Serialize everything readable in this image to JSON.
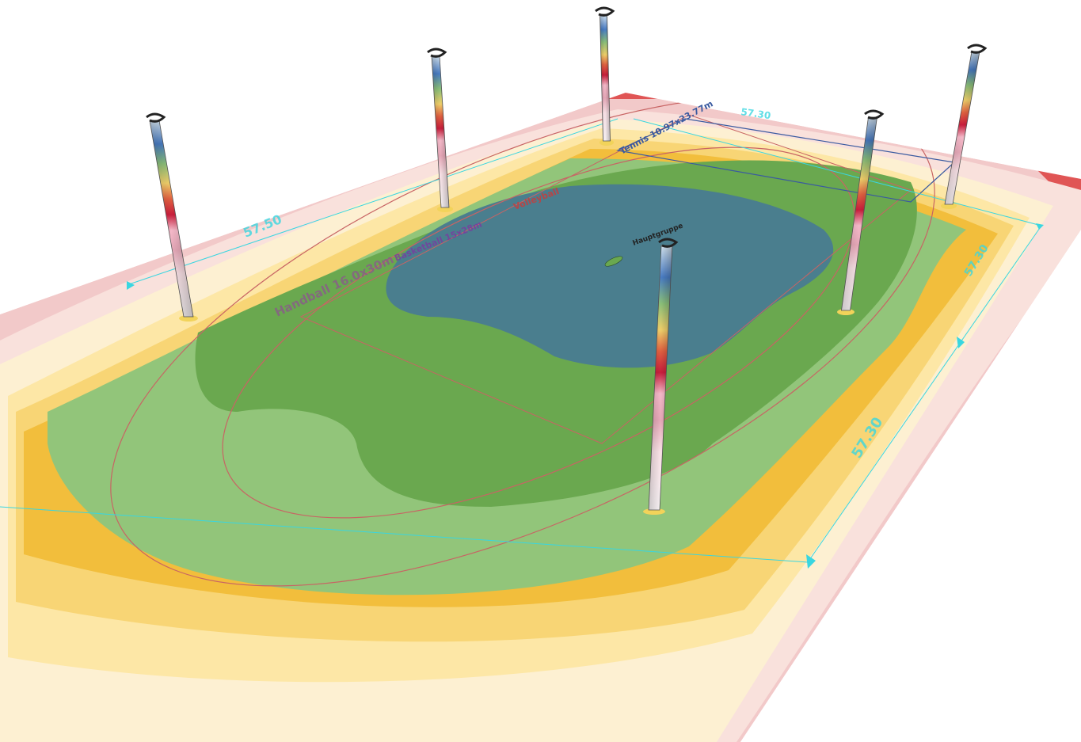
{
  "scene": {
    "background": "#ffffff",
    "colors": {
      "pink_outer": "#f2c9c9",
      "pink_light": "#f9e1dc",
      "red_corner": "#e05555",
      "cream": "#fdf0d2",
      "yellow_light": "#fde7a6",
      "yellow_mid": "#f8d575",
      "orange": "#f2be3c",
      "green_light": "#92c57a",
      "green_mid": "#6aa84f",
      "blue": "#4a7e8e",
      "dimension": "#39d6e0",
      "court_line": "#c86464",
      "court_box": "#3a5aa0"
    },
    "labels": {
      "dim_a": "57.50",
      "dim_b": "57.30",
      "dim_c": "57.30",
      "dim_d": "57.30",
      "field_a": "Handball 16.0x30m",
      "field_b": "Volleyball",
      "field_c": "Basketball 15x28m",
      "field_d": "Tennis 10.97x23.77m",
      "pole_label": "Hauptgruppe"
    },
    "poles": [
      {
        "name": "pole-back-left"
      },
      {
        "name": "pole-back-mid-left"
      },
      {
        "name": "pole-back-center"
      },
      {
        "name": "pole-back-right"
      },
      {
        "name": "pole-far-right"
      },
      {
        "name": "pole-front-center"
      }
    ]
  }
}
